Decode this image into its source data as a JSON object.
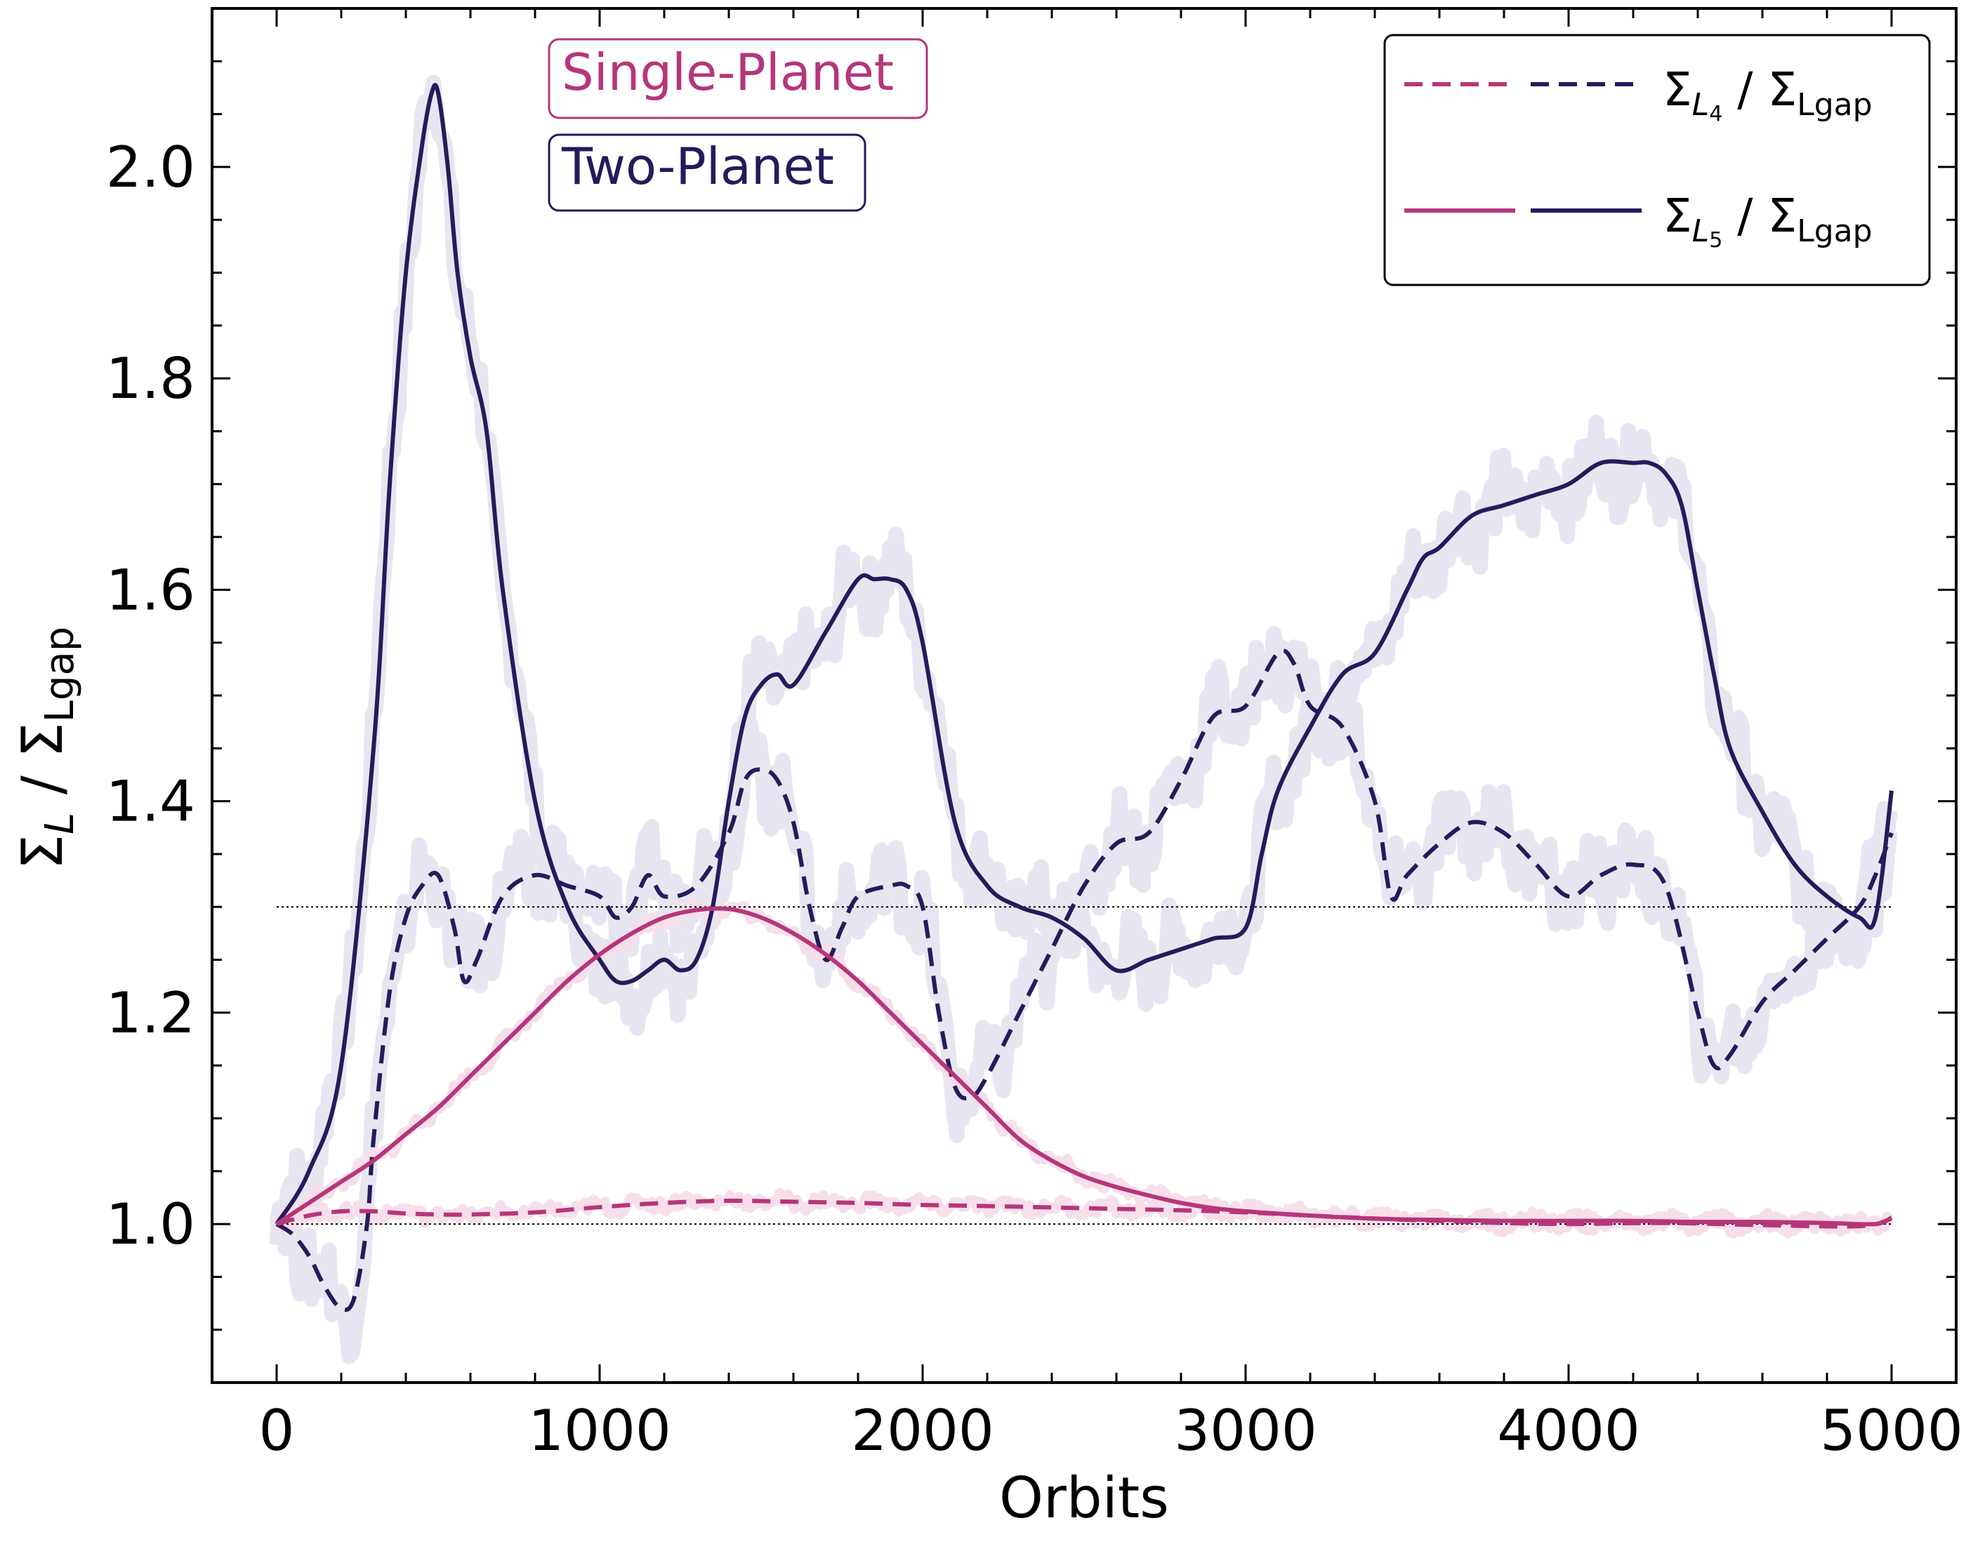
{
  "chart_data": {
    "type": "line",
    "title": "",
    "xlabel": "Orbits",
    "ylabel": "Σ_L / Σ_Lgap",
    "ylabel_parts": {
      "sigma1": "Σ",
      "sub1": "L",
      "slash": " / ",
      "sigma2": "Σ",
      "sub2": "Lgap"
    },
    "xlim": [
      -200,
      5200
    ],
    "ylim": [
      0.85,
      2.15
    ],
    "xticks": [
      0,
      1000,
      2000,
      3000,
      4000,
      5000
    ],
    "xtick_labels": [
      "0",
      "1000",
      "2000",
      "3000",
      "4000",
      "5000"
    ],
    "yticks": [
      1.0,
      1.2,
      1.4,
      1.6,
      1.8,
      2.0
    ],
    "ytick_labels": [
      "1.0",
      "1.2",
      "1.4",
      "1.6",
      "1.8",
      "2.0"
    ],
    "reference_lines": [
      1.0,
      1.3
    ],
    "colors": {
      "single": "#b5367a",
      "two": "#261a5c",
      "band_two": "#e7e6f0",
      "band_single": "#f6dfea"
    },
    "annotations": [
      {
        "text": "Single-Planet",
        "color": "#b5367a"
      },
      {
        "text": "Two-Planet",
        "color": "#261a5c"
      }
    ],
    "legend": {
      "position": "top-right",
      "entries": [
        {
          "style": "dashed",
          "sigma": "Σ",
          "sub": "L",
          "subsub": "4",
          "rest": " / Σ",
          "rest_sub": "Lgap"
        },
        {
          "style": "solid",
          "sigma": "Σ",
          "sub": "L",
          "subsub": "5",
          "rest": " / Σ",
          "rest_sub": "Lgap"
        }
      ]
    },
    "series": [
      {
        "name": "Two-Planet L5",
        "color": "#261a5c",
        "dash": "solid",
        "x": [
          0,
          100,
          200,
          300,
          350,
          400,
          450,
          480,
          500,
          530,
          560,
          600,
          650,
          700,
          800,
          900,
          1000,
          1050,
          1100,
          1150,
          1200,
          1250,
          1300,
          1350,
          1400,
          1450,
          1500,
          1550,
          1600,
          1700,
          1800,
          1850,
          1900,
          1950,
          2000,
          2100,
          2200,
          2300,
          2400,
          2500,
          2600,
          2700,
          2800,
          2900,
          3000,
          3050,
          3100,
          3200,
          3300,
          3400,
          3500,
          3550,
          3600,
          3700,
          3800,
          3900,
          4000,
          4100,
          4200,
          4250,
          4300,
          4350,
          4400,
          4450,
          4500,
          4600,
          4700,
          4800,
          4900,
          4950,
          5000
        ],
        "y": [
          1.0,
          1.05,
          1.15,
          1.45,
          1.7,
          1.9,
          2.02,
          2.07,
          2.07,
          2.0,
          1.9,
          1.82,
          1.75,
          1.6,
          1.4,
          1.3,
          1.25,
          1.23,
          1.23,
          1.24,
          1.25,
          1.24,
          1.25,
          1.3,
          1.4,
          1.48,
          1.51,
          1.52,
          1.51,
          1.56,
          1.61,
          1.61,
          1.61,
          1.6,
          1.55,
          1.38,
          1.32,
          1.3,
          1.29,
          1.27,
          1.24,
          1.25,
          1.26,
          1.27,
          1.28,
          1.35,
          1.41,
          1.47,
          1.52,
          1.54,
          1.6,
          1.63,
          1.64,
          1.67,
          1.68,
          1.69,
          1.7,
          1.72,
          1.72,
          1.72,
          1.71,
          1.68,
          1.6,
          1.52,
          1.45,
          1.39,
          1.34,
          1.31,
          1.29,
          1.29,
          1.41
        ]
      },
      {
        "name": "Two-Planet L4",
        "color": "#261a5c",
        "dash": "dashed",
        "x": [
          0,
          50,
          100,
          150,
          200,
          240,
          280,
          300,
          350,
          400,
          450,
          500,
          550,
          580,
          620,
          700,
          800,
          900,
          1000,
          1050,
          1100,
          1150,
          1200,
          1300,
          1400,
          1450,
          1500,
          1550,
          1600,
          1650,
          1700,
          1750,
          1800,
          1900,
          1950,
          2000,
          2050,
          2100,
          2150,
          2200,
          2300,
          2400,
          2500,
          2600,
          2700,
          2800,
          2900,
          3000,
          3100,
          3150,
          3200,
          3300,
          3400,
          3450,
          3500,
          3600,
          3700,
          3800,
          3900,
          4000,
          4100,
          4200,
          4300,
          4400,
          4450,
          4500,
          4600,
          4700,
          4800,
          4900,
          4950,
          5000
        ],
        "y": [
          1.0,
          0.99,
          0.97,
          0.94,
          0.92,
          0.93,
          1.0,
          1.08,
          1.22,
          1.29,
          1.32,
          1.33,
          1.28,
          1.23,
          1.25,
          1.31,
          1.33,
          1.32,
          1.31,
          1.29,
          1.3,
          1.33,
          1.31,
          1.32,
          1.37,
          1.42,
          1.43,
          1.42,
          1.38,
          1.3,
          1.25,
          1.28,
          1.31,
          1.32,
          1.32,
          1.3,
          1.2,
          1.13,
          1.12,
          1.14,
          1.2,
          1.26,
          1.32,
          1.36,
          1.37,
          1.42,
          1.48,
          1.49,
          1.54,
          1.53,
          1.49,
          1.47,
          1.4,
          1.31,
          1.33,
          1.36,
          1.38,
          1.37,
          1.34,
          1.31,
          1.33,
          1.34,
          1.32,
          1.2,
          1.15,
          1.16,
          1.21,
          1.24,
          1.27,
          1.3,
          1.33,
          1.37
        ]
      },
      {
        "name": "Single-Planet L5",
        "color": "#b5367a",
        "dash": "solid",
        "x": [
          0,
          100,
          200,
          300,
          400,
          500,
          600,
          700,
          800,
          900,
          1000,
          1100,
          1200,
          1300,
          1400,
          1500,
          1600,
          1700,
          1800,
          1900,
          2000,
          2100,
          2200,
          2300,
          2400,
          2500,
          2600,
          2700,
          2800,
          2900,
          3000,
          3200,
          3400,
          3600,
          3800,
          4000,
          4200,
          4400,
          4600,
          4800,
          4950,
          5000
        ],
        "y": [
          1.0,
          1.02,
          1.04,
          1.06,
          1.085,
          1.11,
          1.14,
          1.17,
          1.2,
          1.23,
          1.255,
          1.275,
          1.29,
          1.297,
          1.298,
          1.29,
          1.275,
          1.255,
          1.23,
          1.2,
          1.17,
          1.14,
          1.11,
          1.08,
          1.06,
          1.045,
          1.035,
          1.027,
          1.02,
          1.015,
          1.012,
          1.008,
          1.005,
          1.004,
          1.003,
          1.003,
          1.003,
          1.002,
          1.002,
          1.001,
          1.0,
          1.006
        ]
      },
      {
        "name": "Single-Planet L4",
        "color": "#b5367a",
        "dash": "dashed",
        "x": [
          0,
          100,
          200,
          300,
          400,
          500,
          600,
          800,
          1000,
          1200,
          1400,
          1600,
          1800,
          2000,
          2200,
          2500,
          2800,
          3000,
          3200,
          3500,
          3800,
          4000,
          4300,
          4600,
          4900,
          5000
        ],
        "y": [
          1.0,
          1.008,
          1.012,
          1.012,
          1.01,
          1.009,
          1.009,
          1.011,
          1.016,
          1.02,
          1.022,
          1.021,
          1.02,
          1.018,
          1.017,
          1.015,
          1.013,
          1.011,
          1.008,
          1.004,
          1.001,
          1.0,
          1.001,
          0.999,
          0.998,
          1.005
        ]
      }
    ]
  }
}
